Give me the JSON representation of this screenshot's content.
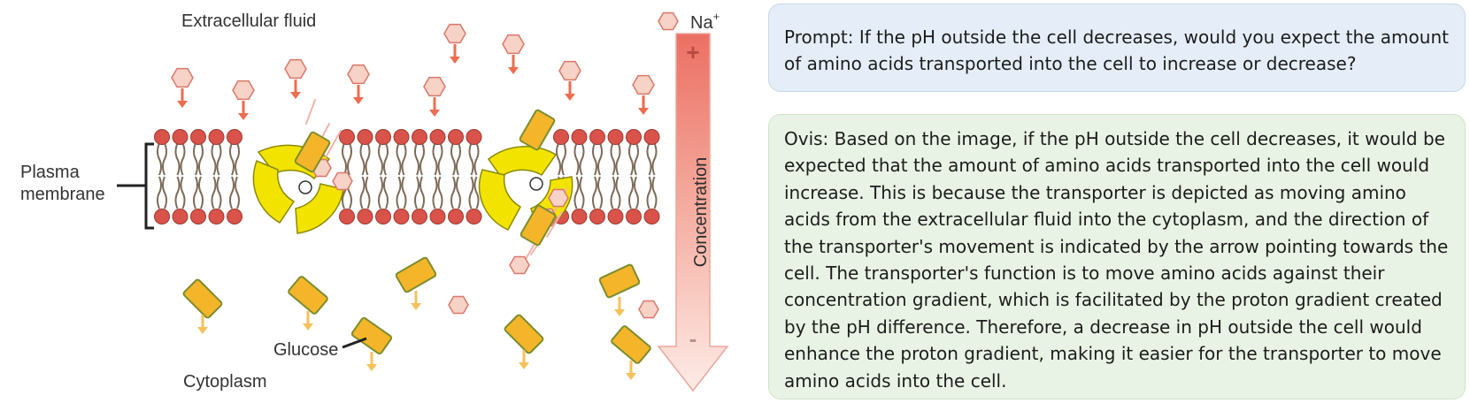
{
  "diagram": {
    "labels": {
      "extracellular": "Extracellular fluid",
      "ion": "Na",
      "ion_charge": "+",
      "plasma_line1": "Plasma",
      "plasma_line2": "membrane",
      "glucose": "Glucose",
      "cytoplasm": "Cytoplasm",
      "concentration": "Concentration",
      "plus": "+",
      "minus": "-"
    },
    "colors": {
      "ion_fill": "#f7d2c6",
      "ion_stroke": "#d9786a",
      "ion_arrow": "#ec6d4f",
      "glucose_fill": "#f4b52a",
      "glucose_stroke": "#7a8d2a",
      "glucose_arrow": "#f6c15a",
      "lipid_head": "#d9534a",
      "lipid_tail": "#7d6b58",
      "transporter": "#f3e300",
      "gradient_top": "#ec6f63",
      "gradient_bottom": "#fde9e4"
    }
  },
  "prompt": {
    "text": "Prompt: If the pH outside the cell decreases, would you expect the amount of amino acids transported into the cell to increase or decrease?"
  },
  "answer": {
    "text": "Ovis: Based on the image, if the pH outside the cell decreases, it would be expected that the amount of amino acids transported into the cell would increase. This is because the transporter is depicted as moving amino acids from the extracellular fluid into the cytoplasm, and the direction of the transporter's movement is indicated by the arrow pointing towards the cell. The transporter's function is to move amino acids against their concentration gradient, which is facilitated by the proton gradient created by the pH difference. Therefore, a decrease in pH outside the cell would enhance the proton gradient, making it easier for the transporter to move amino acids into the cell."
  }
}
